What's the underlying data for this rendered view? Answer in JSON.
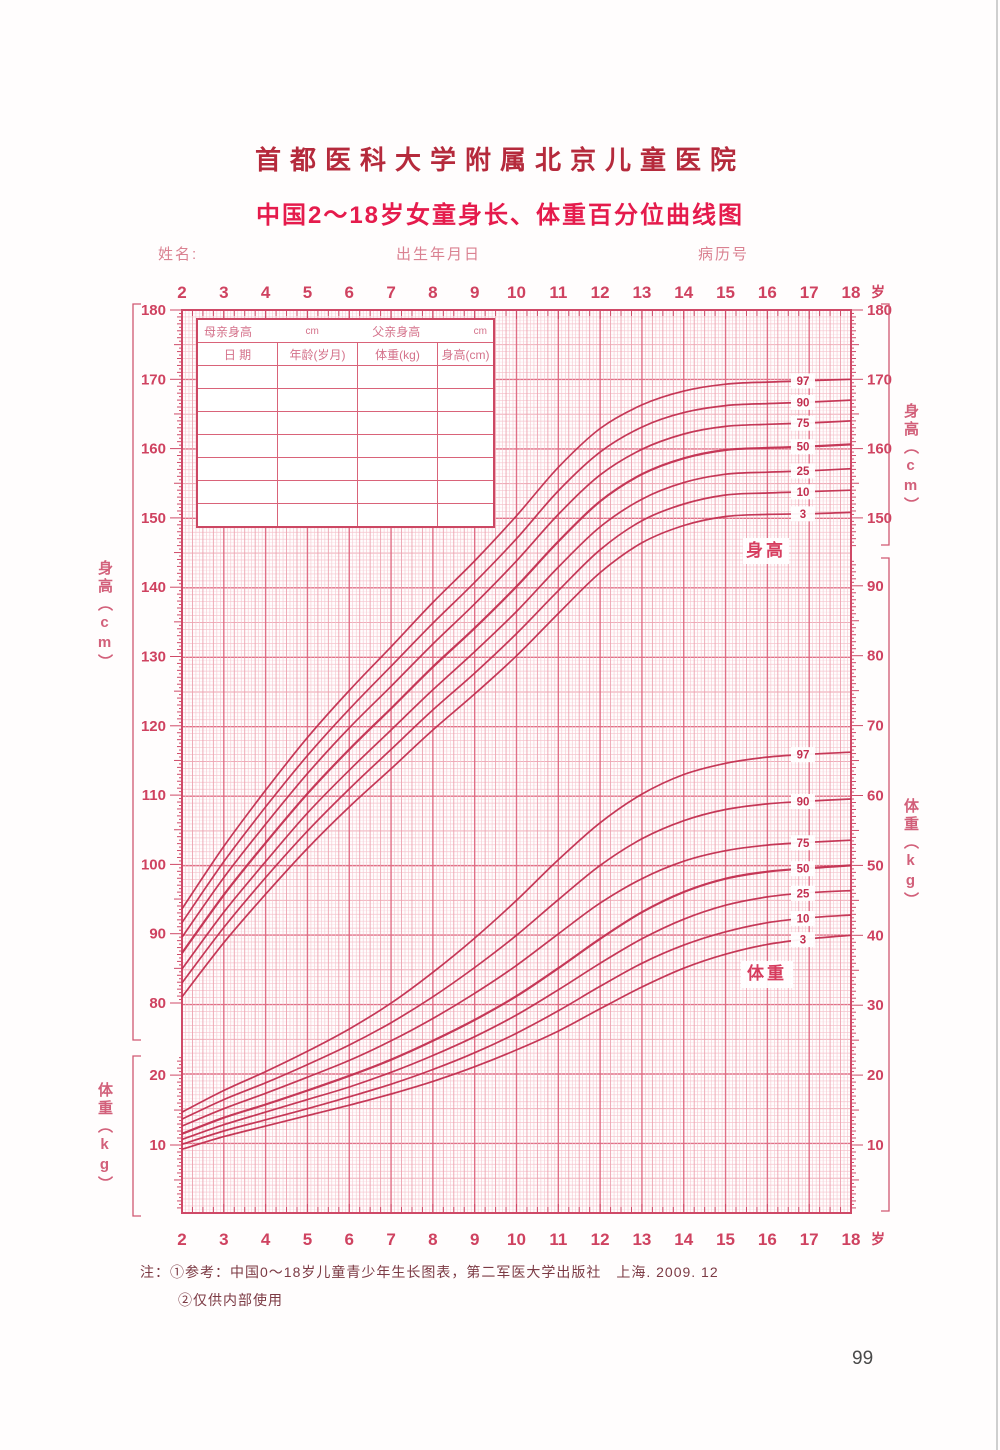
{
  "header": {
    "hospital": "首都医科大学附属北京儿童医院",
    "title": "中国2～18岁女童身长、体重百分位曲线图"
  },
  "form": {
    "name_label": "姓名:",
    "birth_label": "出生年月日",
    "record_label": "病历号"
  },
  "table": {
    "row1": {
      "mother_label": "母亲身高",
      "mother_unit": "cm",
      "father_label": "父亲身高",
      "father_unit": "cm"
    },
    "headers": [
      "日 期",
      "年龄(岁月)",
      "体重(kg)",
      "身高(cm)"
    ],
    "empty_rows": 7
  },
  "chart_annotations": {
    "height_box_label": "身高",
    "weight_box_label": "体重",
    "age_unit": "岁",
    "left_height_axis": "身高（cm）",
    "left_weight_axis": "体重（kg）",
    "right_height_axis": "身高（cm）",
    "right_weight_axis": "体重（kg）"
  },
  "notes": {
    "line1": "注：①参考：中国0～18岁儿童青少年生长图表，第二军医大学出版社　上海. 2009. 12",
    "line2": "②仅供内部使用"
  },
  "page_number": "99",
  "colors": {
    "curve": "#c22e4f",
    "grid_strong": "#e06f86",
    "grid_medium": "#eda3b0",
    "grid_minor": "#f5c4cd",
    "grid_micro": "#fae4e9",
    "frame": "#cf4967",
    "tick_text": "#cf4260",
    "bracket": "#d05872"
  },
  "chart_data": {
    "type": "line",
    "title": "中国2～18岁女童身长、体重百分位曲线图",
    "x": [
      2,
      3,
      4,
      5,
      6,
      7,
      8,
      9,
      10,
      11,
      12,
      13,
      14,
      15,
      16,
      17,
      18
    ],
    "x_unit": "岁",
    "age_ticks": [
      2,
      3,
      4,
      5,
      6,
      7,
      8,
      9,
      10,
      11,
      12,
      13,
      14,
      15,
      16,
      17,
      18
    ],
    "height_axis": {
      "label": "身高（cm）",
      "min": 80,
      "max": 180,
      "tick_step": 10
    },
    "weight_axis": {
      "label": "体重（kg）",
      "min": 0,
      "max": 95,
      "tick_step": 10
    },
    "left_height_ticks": [
      180,
      170,
      160,
      150,
      140,
      130,
      120,
      110,
      100,
      90,
      80
    ],
    "right_height_ticks": [
      180,
      170,
      160,
      150
    ],
    "left_weight_ticks": [
      20,
      10
    ],
    "right_weight_ticks": [
      90,
      80,
      70,
      60,
      50,
      40,
      30,
      20,
      10
    ],
    "percentile_labels": [
      "97",
      "90",
      "75",
      "50",
      "25",
      "10",
      "3"
    ],
    "legend_position": "right-of-curves",
    "grid": true,
    "height_series": [
      {
        "name": "P97",
        "values": [
          93.6,
          102.6,
          110.7,
          118.3,
          125.1,
          131.4,
          137.8,
          143.8,
          150.3,
          157.3,
          162.9,
          166.3,
          168.3,
          169.3,
          169.6,
          169.8,
          170.0
        ]
      },
      {
        "name": "P90",
        "values": [
          91.6,
          100.4,
          108.3,
          115.7,
          122.4,
          128.6,
          134.8,
          140.7,
          147.0,
          153.9,
          159.5,
          163.1,
          165.2,
          166.2,
          166.5,
          166.7,
          167.0
        ]
      },
      {
        "name": "P75",
        "values": [
          89.5,
          98.1,
          105.8,
          113.1,
          119.7,
          125.7,
          131.8,
          137.6,
          143.8,
          150.5,
          156.2,
          159.9,
          162.1,
          163.2,
          163.5,
          163.7,
          164.0
        ]
      },
      {
        "name": "P50",
        "values": [
          87.2,
          95.6,
          103.1,
          110.2,
          116.6,
          122.5,
          128.5,
          134.1,
          140.1,
          146.6,
          152.4,
          156.3,
          158.6,
          159.8,
          160.1,
          160.3,
          160.6
        ]
      },
      {
        "name": "P25",
        "values": [
          84.9,
          93.1,
          100.4,
          107.4,
          113.6,
          119.4,
          125.2,
          130.7,
          136.5,
          142.9,
          148.7,
          152.7,
          155.1,
          156.3,
          156.6,
          156.8,
          157.1
        ]
      },
      {
        "name": "P10",
        "values": [
          82.9,
          90.9,
          98.1,
          104.8,
          110.9,
          116.6,
          122.3,
          127.6,
          133.3,
          139.5,
          145.4,
          149.6,
          152.0,
          153.3,
          153.6,
          153.8,
          154.0
        ]
      },
      {
        "name": "P3",
        "values": [
          80.9,
          88.7,
          95.7,
          102.3,
          108.3,
          113.8,
          119.4,
          124.6,
          130.1,
          136.2,
          142.1,
          146.4,
          148.9,
          150.2,
          150.5,
          150.6,
          150.8
        ]
      }
    ],
    "weight_series": [
      {
        "name": "P97",
        "values": [
          14.7,
          17.8,
          20.5,
          23.4,
          26.6,
          30.3,
          34.7,
          39.6,
          45.0,
          50.8,
          56.1,
          60.2,
          63.0,
          64.6,
          65.5,
          65.9,
          66.2
        ]
      },
      {
        "name": "P90",
        "values": [
          13.7,
          16.5,
          18.9,
          21.5,
          24.3,
          27.5,
          31.2,
          35.4,
          40.0,
          45.1,
          50.0,
          53.8,
          56.4,
          58.0,
          58.8,
          59.2,
          59.5
        ]
      },
      {
        "name": "P75",
        "values": [
          12.7,
          15.2,
          17.4,
          19.7,
          22.1,
          24.9,
          28.1,
          31.7,
          35.7,
          40.2,
          44.6,
          48.1,
          50.6,
          52.1,
          52.9,
          53.3,
          53.6
        ]
      },
      {
        "name": "P50",
        "values": [
          11.6,
          13.9,
          15.8,
          17.8,
          19.9,
          22.2,
          24.9,
          27.9,
          31.3,
          35.3,
          39.5,
          43.3,
          46.2,
          48.1,
          49.1,
          49.6,
          50.0
        ]
      },
      {
        "name": "P25",
        "values": [
          10.8,
          12.9,
          14.7,
          16.5,
          18.3,
          20.4,
          22.8,
          25.5,
          28.6,
          32.2,
          36.0,
          39.5,
          42.3,
          44.3,
          45.5,
          46.1,
          46.4
        ]
      },
      {
        "name": "P10",
        "values": [
          10.1,
          12.0,
          13.6,
          15.2,
          16.9,
          18.7,
          20.8,
          23.2,
          26.0,
          29.2,
          32.7,
          36.0,
          38.6,
          40.5,
          41.8,
          42.5,
          42.9
        ]
      },
      {
        "name": "P3",
        "values": [
          9.4,
          11.2,
          12.7,
          14.2,
          15.7,
          17.3,
          19.1,
          21.2,
          23.6,
          26.3,
          29.5,
          32.6,
          35.3,
          37.3,
          38.7,
          39.5,
          40.0
        ]
      }
    ]
  }
}
